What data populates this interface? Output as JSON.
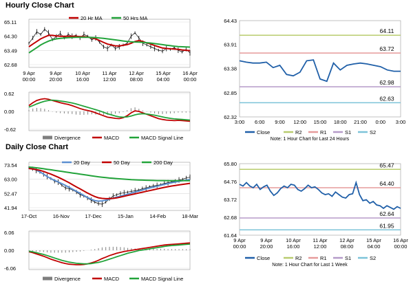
{
  "sections": {
    "hourly_title": "Hourly Close Chart",
    "daily_title": "Daily Close Chart"
  },
  "colors": {
    "close": "#1f5fa8",
    "ma20": "#c00000",
    "ma50": "#22a33a",
    "divergence": "#7f7f7f",
    "macd": "#c00000",
    "signal": "#22a33a",
    "r2": "#b8cc6e",
    "r1": "#e69a9a",
    "s1": "#b59ac8",
    "s2": "#7cc3d8",
    "bars": "#000000"
  },
  "chart_data": [
    {
      "id": "hourly-price",
      "type": "line",
      "title": "",
      "x_ticks": [
        "9 Apr\n00:00",
        "9 Apr\n20:00",
        "10 Apr\n16:00",
        "11 Apr\n12:00",
        "12 Apr\n08:00",
        "15 Apr\n04:00",
        "16 Apr\n00:00"
      ],
      "y_ticks": [
        "65.11",
        "64.30",
        "63.49",
        "62.68"
      ],
      "ylim": [
        62.68,
        65.11
      ],
      "legend": [
        "20 Hr MA",
        "50 Hrs MA"
      ],
      "close": [
        63.9,
        64.2,
        64.55,
        64.4,
        64.7,
        64.5,
        64.1,
        64.3,
        64.45,
        64.2,
        64.4,
        64.3,
        64.35,
        64.2,
        64.4,
        64.3,
        64.1,
        64.2,
        63.95,
        63.7,
        63.6,
        63.8,
        63.6,
        63.7,
        63.8,
        63.9,
        64.3,
        64.5,
        64.2,
        63.9,
        63.8,
        63.7,
        63.6,
        63.5,
        63.45,
        63.6,
        63.55,
        63.65,
        63.5,
        63.4,
        63.55,
        63.35
      ],
      "series": [
        {
          "name": "20 Hr MA",
          "values": [
            63.7,
            63.85,
            64.0,
            64.15,
            64.25,
            64.35,
            64.35,
            64.32,
            64.3,
            64.3,
            64.3,
            64.3,
            64.3,
            64.28,
            64.28,
            64.25,
            64.2,
            64.15,
            64.05,
            63.95,
            63.85,
            63.8,
            63.75,
            63.75,
            63.78,
            63.82,
            63.9,
            64.0,
            64.05,
            64.0,
            63.92,
            63.85,
            63.77,
            63.7,
            63.63,
            63.6,
            63.58,
            63.57,
            63.55,
            63.52,
            63.5,
            63.48
          ]
        },
        {
          "name": "50 Hrs MA",
          "values": [
            63.35,
            63.5,
            63.65,
            63.8,
            63.92,
            64.02,
            64.1,
            64.15,
            64.18,
            64.2,
            64.22,
            64.23,
            64.24,
            64.24,
            64.24,
            64.24,
            64.23,
            64.22,
            64.2,
            64.18,
            64.15,
            64.12,
            64.09,
            64.06,
            64.03,
            64.0,
            63.98,
            63.97,
            63.96,
            63.95,
            63.93,
            63.91,
            63.88,
            63.85,
            63.82,
            63.79,
            63.76,
            63.73,
            63.71,
            63.7,
            63.69,
            63.68
          ]
        }
      ]
    },
    {
      "id": "hourly-macd",
      "type": "line",
      "y_ticks": [
        "0.62",
        "0.00",
        "-0.62"
      ],
      "ylim": [
        -0.62,
        0.62
      ],
      "legend": [
        "Divergence",
        "MACD",
        "MACD Signal Line"
      ],
      "series": [
        {
          "name": "MACD",
          "values": [
            0.2,
            0.3,
            0.38,
            0.42,
            0.44,
            0.42,
            0.38,
            0.34,
            0.3,
            0.27,
            0.24,
            0.2,
            0.15,
            0.1,
            0.06,
            0.03,
            0.0,
            -0.05,
            -0.1,
            -0.15,
            -0.2,
            -0.22,
            -0.24,
            -0.25,
            -0.22,
            -0.15,
            -0.05,
            0.02,
            0.0,
            -0.05,
            -0.1,
            -0.15,
            -0.2,
            -0.25,
            -0.28,
            -0.3,
            -0.31,
            -0.32,
            -0.31,
            -0.32,
            -0.33,
            -0.34
          ]
        },
        {
          "name": "MACD Signal Line",
          "values": [
            0.15,
            0.2,
            0.26,
            0.31,
            0.35,
            0.38,
            0.39,
            0.38,
            0.36,
            0.34,
            0.32,
            0.29,
            0.26,
            0.22,
            0.18,
            0.14,
            0.1,
            0.06,
            0.02,
            -0.03,
            -0.08,
            -0.12,
            -0.16,
            -0.19,
            -0.2,
            -0.19,
            -0.16,
            -0.12,
            -0.09,
            -0.08,
            -0.09,
            -0.11,
            -0.13,
            -0.16,
            -0.19,
            -0.22,
            -0.24,
            -0.26,
            -0.27,
            -0.28,
            -0.29,
            -0.3
          ]
        }
      ]
    },
    {
      "id": "hourly-pivot",
      "type": "line",
      "x_ticks": [
        "3:00",
        "6:00",
        "9:00",
        "12:00",
        "15:00",
        "18:00",
        "21:00",
        "0:00",
        "3:00"
      ],
      "y_ticks": [
        "64.43",
        "63.91",
        "63.38",
        "62.85",
        "62.32"
      ],
      "ylim": [
        62.32,
        64.43
      ],
      "close": [
        63.55,
        63.52,
        63.5,
        63.5,
        63.52,
        63.4,
        63.45,
        63.25,
        63.22,
        63.3,
        63.55,
        63.57,
        63.15,
        63.1,
        63.5,
        63.35,
        63.45,
        63.48,
        63.5,
        63.48,
        63.45,
        63.42,
        63.35,
        63.32,
        63.32
      ],
      "levels": [
        {
          "name": "R2",
          "value": 64.11,
          "label": "64.11"
        },
        {
          "name": "R1",
          "value": 63.72,
          "label": "63.72"
        },
        {
          "name": "S1",
          "value": 62.98,
          "label": "62.98"
        },
        {
          "name": "S2",
          "value": 62.63,
          "label": "62.63"
        }
      ],
      "legend": [
        "Close",
        "R2",
        "R1",
        "S1",
        "S2"
      ],
      "note": "Note: 1 Hour Chart for Last 24 Hours"
    },
    {
      "id": "daily-price",
      "type": "line",
      "x_ticks": [
        "17-Oct",
        "16-Nov",
        "17-Dec",
        "15-Jan",
        "14-Feb",
        "18-Mar"
      ],
      "y_ticks": [
        "73.54",
        "63.00",
        "52.47",
        "41.94"
      ],
      "ylim": [
        41.94,
        73.54
      ],
      "legend": [
        "20 Day",
        "50 Day",
        "200 Day"
      ],
      "close": [
        71.5,
        70.8,
        69.5,
        68.2,
        66.5,
        65.0,
        63.5,
        61.5,
        60.8,
        58.5,
        56.5,
        56.0,
        55.0,
        53.5,
        51.5,
        50.5,
        49.0,
        47.5,
        46.0,
        45.0,
        44.5,
        46.0,
        48.5,
        50.5,
        51.5,
        52.5,
        53.0,
        53.5,
        54.0,
        54.5,
        55.0,
        56.0,
        56.5,
        57.5,
        58.0,
        58.5,
        59.0,
        60.0,
        60.5,
        61.0,
        61.5,
        62.5,
        63.0,
        64.0,
        64.5
      ],
      "series": [
        {
          "name": "20 Day",
          "values": [
            71.5,
            71.0,
            70.0,
            68.5,
            66.8,
            65.0,
            63.5,
            62.2,
            61.0,
            59.8,
            58.4,
            57.0,
            55.5,
            54.0,
            52.6,
            51.0,
            49.5,
            48.2,
            47.2,
            46.8,
            47.0,
            47.5,
            48.2,
            49.0,
            49.8,
            50.5,
            51.2,
            52.0,
            52.8,
            53.5,
            54.2,
            55.0,
            55.8,
            56.5,
            57.2,
            57.8,
            58.5,
            59.2,
            59.8,
            60.4,
            60.9,
            61.4,
            61.9,
            62.4,
            62.8
          ]
        },
        {
          "name": "50 Day",
          "values": [
            71.0,
            70.6,
            70.2,
            69.6,
            68.8,
            67.8,
            66.8,
            65.7,
            64.5,
            63.2,
            61.8,
            60.4,
            58.8,
            57.3,
            55.8,
            54.3,
            52.8,
            51.4,
            50.2,
            49.3,
            48.8,
            48.6,
            48.6,
            48.8,
            49.2,
            49.8,
            50.4,
            51.0,
            51.6,
            52.2,
            52.8,
            53.4,
            54.0,
            54.6,
            55.2,
            55.8,
            56.4,
            57.0,
            57.5,
            58.0,
            58.4,
            58.8,
            59.2,
            59.6,
            60.0
          ]
        },
        {
          "name": "200 Day",
          "values": [
            72.0,
            71.8,
            71.5,
            71.2,
            70.8,
            70.4,
            70.0,
            69.6,
            69.2,
            68.8,
            68.4,
            68.0,
            67.6,
            67.2,
            66.8,
            66.4,
            66.0,
            65.6,
            65.2,
            64.8,
            64.5,
            64.2,
            63.9,
            63.7,
            63.5,
            63.3,
            63.1,
            62.9,
            62.7,
            62.6,
            62.5,
            62.4,
            62.3,
            62.2,
            62.1,
            62.0,
            62.0,
            62.0,
            61.9,
            61.9,
            61.9,
            61.9,
            61.9,
            61.9,
            61.9
          ]
        }
      ]
    },
    {
      "id": "daily-macd",
      "type": "line",
      "y_ticks": [
        "6.06",
        "0.00",
        "-6.06"
      ],
      "ylim": [
        -6.06,
        6.06
      ],
      "legend": [
        "Divergence",
        "MACD",
        "MACD Signal Line"
      ],
      "series": [
        {
          "name": "MACD",
          "values": [
            -0.5,
            -0.8,
            -1.2,
            -1.6,
            -2.0,
            -2.5,
            -3.0,
            -3.4,
            -3.8,
            -4.2,
            -4.5,
            -4.7,
            -4.8,
            -4.9,
            -4.9,
            -4.8,
            -4.6,
            -4.3,
            -3.9,
            -3.4,
            -2.8,
            -2.3,
            -1.8,
            -1.4,
            -1.0,
            -0.7,
            -0.4,
            -0.2,
            0.0,
            0.2,
            0.4,
            0.6,
            0.8,
            1.0,
            1.2,
            1.4,
            1.6,
            1.8,
            1.9,
            2.0,
            2.1,
            2.2,
            2.3,
            2.4,
            2.5
          ]
        },
        {
          "name": "MACD Signal Line",
          "values": [
            -0.3,
            -0.5,
            -0.8,
            -1.1,
            -1.4,
            -1.8,
            -2.2,
            -2.6,
            -3.0,
            -3.4,
            -3.7,
            -4.0,
            -4.2,
            -4.4,
            -4.5,
            -4.6,
            -4.6,
            -4.5,
            -4.3,
            -4.1,
            -3.8,
            -3.4,
            -3.0,
            -2.6,
            -2.2,
            -1.8,
            -1.4,
            -1.0,
            -0.7,
            -0.4,
            -0.1,
            0.1,
            0.3,
            0.5,
            0.7,
            0.9,
            1.1,
            1.3,
            1.5,
            1.6,
            1.7,
            1.8,
            1.9,
            2.0,
            2.1
          ]
        }
      ]
    },
    {
      "id": "daily-pivot",
      "type": "line",
      "x_ticks": [
        "9 Apr\n00:00",
        "9 Apr\n20:00",
        "10 Apr\n16:00",
        "11 Apr\n12:00",
        "12 Apr\n08:00",
        "15 Apr\n04:00",
        "16 Apr\n00:00"
      ],
      "y_ticks": [
        "65.80",
        "64.76",
        "63.72",
        "62.68",
        "61.64"
      ],
      "ylim": [
        61.64,
        65.8
      ],
      "close": [
        64.6,
        64.5,
        64.7,
        64.5,
        64.4,
        64.6,
        64.3,
        64.45,
        64.55,
        64.2,
        63.95,
        64.1,
        64.35,
        64.5,
        64.4,
        64.6,
        64.55,
        64.3,
        64.2,
        64.35,
        64.55,
        64.4,
        64.45,
        64.3,
        64.1,
        64.0,
        64.05,
        63.9,
        64.15,
        64.0,
        63.85,
        63.8,
        64.0,
        64.05,
        64.7,
        64.0,
        63.65,
        63.7,
        63.5,
        63.6,
        63.4,
        63.35,
        63.2,
        63.35,
        63.25,
        63.15,
        63.3,
        63.2
      ],
      "levels": [
        {
          "name": "R2",
          "value": 65.47,
          "label": "65.47"
        },
        {
          "name": "R1",
          "value": 64.4,
          "label": "64.40"
        },
        {
          "name": "S1",
          "value": 62.64,
          "label": "62.64"
        },
        {
          "name": "S2",
          "value": 61.95,
          "label": "61.95"
        }
      ],
      "legend": [
        "Close",
        "R2",
        "R1",
        "S1",
        "S2"
      ],
      "note": "Note: 1 Hour Chart for Last 1 Week"
    }
  ]
}
